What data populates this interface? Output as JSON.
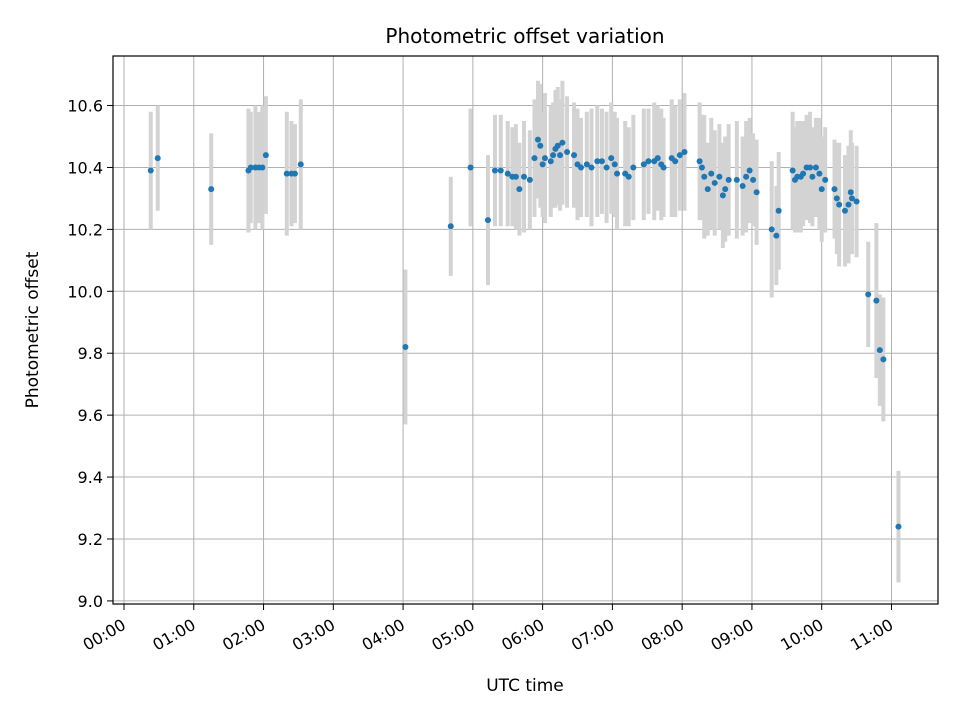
{
  "chart_data": {
    "type": "scatter",
    "title": "Photometric offset variation",
    "xlabel": "UTC time",
    "ylabel": "Photometric offset",
    "xlim": [
      "00:00",
      "11:40"
    ],
    "ylim": [
      8.99,
      10.76
    ],
    "x_ticks": [
      "00:00",
      "01:00",
      "02:00",
      "03:00",
      "04:00",
      "05:00",
      "06:00",
      "07:00",
      "08:00",
      "09:00",
      "10:00",
      "11:00"
    ],
    "y_ticks": [
      "9.0",
      "9.2",
      "9.4",
      "9.6",
      "9.8",
      "10.0",
      "10.2",
      "10.4",
      "10.6"
    ],
    "grid": true,
    "marker_color": "#1f77b4",
    "errorbar_color": "#d3d3d3",
    "series": [
      {
        "points": [
          {
            "t": "00:23",
            "y": 10.39,
            "err": 0.19
          },
          {
            "t": "00:29",
            "y": 10.43,
            "err": 0.17
          },
          {
            "t": "01:15",
            "y": 10.33,
            "err": 0.18
          },
          {
            "t": "01:47",
            "y": 10.39,
            "err": 0.2
          },
          {
            "t": "01:49",
            "y": 10.4,
            "err": 0.18
          },
          {
            "t": "01:53",
            "y": 10.4,
            "err": 0.2
          },
          {
            "t": "01:56",
            "y": 10.4,
            "err": 0.18
          },
          {
            "t": "01:59",
            "y": 10.4,
            "err": 0.2
          },
          {
            "t": "02:02",
            "y": 10.44,
            "err": 0.19
          },
          {
            "t": "02:20",
            "y": 10.38,
            "err": 0.2
          },
          {
            "t": "02:24",
            "y": 10.38,
            "err": 0.17
          },
          {
            "t": "02:27",
            "y": 10.38,
            "err": 0.16
          },
          {
            "t": "02:32",
            "y": 10.41,
            "err": 0.21
          },
          {
            "t": "04:02",
            "y": 9.82,
            "err": 0.25
          },
          {
            "t": "04:41",
            "y": 10.21,
            "err": 0.16
          },
          {
            "t": "04:58",
            "y": 10.4,
            "err": 0.19
          },
          {
            "t": "05:13",
            "y": 10.23,
            "err": 0.21
          },
          {
            "t": "05:19",
            "y": 10.39,
            "err": 0.18
          },
          {
            "t": "05:24",
            "y": 10.39,
            "err": 0.18
          },
          {
            "t": "05:30",
            "y": 10.38,
            "err": 0.17
          },
          {
            "t": "05:34",
            "y": 10.37,
            "err": 0.16
          },
          {
            "t": "05:37",
            "y": 10.37,
            "err": 0.17
          },
          {
            "t": "05:40",
            "y": 10.33,
            "err": 0.15
          },
          {
            "t": "05:44",
            "y": 10.37,
            "err": 0.18
          },
          {
            "t": "05:49",
            "y": 10.36,
            "err": 0.16
          },
          {
            "t": "05:53",
            "y": 10.43,
            "err": 0.19
          },
          {
            "t": "05:56",
            "y": 10.49,
            "err": 0.19
          },
          {
            "t": "05:58",
            "y": 10.47,
            "err": 0.2
          },
          {
            "t": "06:00",
            "y": 10.41,
            "err": 0.17
          },
          {
            "t": "06:02",
            "y": 10.43,
            "err": 0.21
          },
          {
            "t": "06:07",
            "y": 10.42,
            "err": 0.18
          },
          {
            "t": "06:09",
            "y": 10.44,
            "err": 0.17
          },
          {
            "t": "06:11",
            "y": 10.46,
            "err": 0.19
          },
          {
            "t": "06:13",
            "y": 10.47,
            "err": 0.19
          },
          {
            "t": "06:15",
            "y": 10.44,
            "err": 0.18
          },
          {
            "t": "06:17",
            "y": 10.48,
            "err": 0.2
          },
          {
            "t": "06:21",
            "y": 10.45,
            "err": 0.18
          },
          {
            "t": "06:27",
            "y": 10.44,
            "err": 0.17
          },
          {
            "t": "06:30",
            "y": 10.41,
            "err": 0.18
          },
          {
            "t": "06:33",
            "y": 10.4,
            "err": 0.16
          },
          {
            "t": "06:38",
            "y": 10.41,
            "err": 0.17
          },
          {
            "t": "06:42",
            "y": 10.4,
            "err": 0.19
          },
          {
            "t": "06:47",
            "y": 10.42,
            "err": 0.18
          },
          {
            "t": "06:51",
            "y": 10.42,
            "err": 0.17
          },
          {
            "t": "06:55",
            "y": 10.4,
            "err": 0.18
          },
          {
            "t": "06:59",
            "y": 10.43,
            "err": 0.18
          },
          {
            "t": "07:02",
            "y": 10.41,
            "err": 0.17
          },
          {
            "t": "07:04",
            "y": 10.38,
            "err": 0.18
          },
          {
            "t": "07:11",
            "y": 10.38,
            "err": 0.17
          },
          {
            "t": "07:14",
            "y": 10.37,
            "err": 0.16
          },
          {
            "t": "07:18",
            "y": 10.4,
            "err": 0.17
          },
          {
            "t": "07:27",
            "y": 10.41,
            "err": 0.18
          },
          {
            "t": "07:31",
            "y": 10.42,
            "err": 0.17
          },
          {
            "t": "07:36",
            "y": 10.42,
            "err": 0.19
          },
          {
            "t": "07:39",
            "y": 10.43,
            "err": 0.17
          },
          {
            "t": "07:42",
            "y": 10.41,
            "err": 0.18
          },
          {
            "t": "07:44",
            "y": 10.4,
            "err": 0.16
          },
          {
            "t": "07:51",
            "y": 10.43,
            "err": 0.19
          },
          {
            "t": "07:54",
            "y": 10.42,
            "err": 0.18
          },
          {
            "t": "07:58",
            "y": 10.44,
            "err": 0.18
          },
          {
            "t": "08:02",
            "y": 10.45,
            "err": 0.19
          },
          {
            "t": "08:15",
            "y": 10.42,
            "err": 0.19
          },
          {
            "t": "08:17",
            "y": 10.4,
            "err": 0.17
          },
          {
            "t": "08:19",
            "y": 10.37,
            "err": 0.2
          },
          {
            "t": "08:22",
            "y": 10.33,
            "err": 0.15
          },
          {
            "t": "08:25",
            "y": 10.38,
            "err": 0.18
          },
          {
            "t": "08:28",
            "y": 10.35,
            "err": 0.17
          },
          {
            "t": "08:32",
            "y": 10.37,
            "err": 0.17
          },
          {
            "t": "08:35",
            "y": 10.31,
            "err": 0.17
          },
          {
            "t": "08:37",
            "y": 10.33,
            "err": 0.17
          },
          {
            "t": "08:40",
            "y": 10.36,
            "err": 0.18
          },
          {
            "t": "08:47",
            "y": 10.36,
            "err": 0.19
          },
          {
            "t": "08:52",
            "y": 10.34,
            "err": 0.16
          },
          {
            "t": "08:55",
            "y": 10.37,
            "err": 0.18
          },
          {
            "t": "08:58",
            "y": 10.39,
            "err": 0.17
          },
          {
            "t": "09:01",
            "y": 10.36,
            "err": 0.15
          },
          {
            "t": "09:04",
            "y": 10.32,
            "err": 0.17
          },
          {
            "t": "09:17",
            "y": 10.2,
            "err": 0.22
          },
          {
            "t": "09:21",
            "y": 10.18,
            "err": 0.16
          },
          {
            "t": "09:23",
            "y": 10.26,
            "err": 0.19
          },
          {
            "t": "09:35",
            "y": 10.39,
            "err": 0.19
          },
          {
            "t": "09:37",
            "y": 10.36,
            "err": 0.17
          },
          {
            "t": "09:39",
            "y": 10.37,
            "err": 0.18
          },
          {
            "t": "09:42",
            "y": 10.37,
            "err": 0.18
          },
          {
            "t": "09:44",
            "y": 10.38,
            "err": 0.17
          },
          {
            "t": "09:47",
            "y": 10.4,
            "err": 0.17
          },
          {
            "t": "09:50",
            "y": 10.4,
            "err": 0.18
          },
          {
            "t": "09:52",
            "y": 10.37,
            "err": 0.16
          },
          {
            "t": "09:55",
            "y": 10.4,
            "err": 0.16
          },
          {
            "t": "09:58",
            "y": 10.38,
            "err": 0.18
          },
          {
            "t": "10:00",
            "y": 10.33,
            "err": 0.17
          },
          {
            "t": "10:03",
            "y": 10.36,
            "err": 0.17
          },
          {
            "t": "10:11",
            "y": 10.33,
            "err": 0.16
          },
          {
            "t": "10:13",
            "y": 10.3,
            "err": 0.18
          },
          {
            "t": "10:15",
            "y": 10.28,
            "err": 0.2
          },
          {
            "t": "10:20",
            "y": 10.26,
            "err": 0.18
          },
          {
            "t": "10:23",
            "y": 10.28,
            "err": 0.19
          },
          {
            "t": "10:25",
            "y": 10.32,
            "err": 0.2
          },
          {
            "t": "10:26",
            "y": 10.3,
            "err": 0.18
          },
          {
            "t": "10:30",
            "y": 10.29,
            "err": 0.18
          },
          {
            "t": "10:40",
            "y": 9.99,
            "err": 0.17
          },
          {
            "t": "10:47",
            "y": 9.97,
            "err": 0.25
          },
          {
            "t": "10:50",
            "y": 9.81,
            "err": 0.18
          },
          {
            "t": "10:53",
            "y": 9.78,
            "err": 0.2
          },
          {
            "t": "11:06",
            "y": 9.24,
            "err": 0.18
          }
        ]
      }
    ]
  }
}
